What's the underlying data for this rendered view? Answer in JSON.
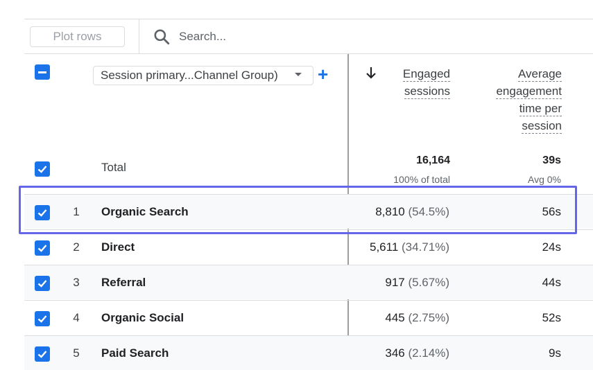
{
  "toolbar": {
    "plot_rows_label": "Plot rows",
    "search_placeholder": "Search..."
  },
  "icons": {
    "search": "search-icon",
    "sort": "arrow-down-icon",
    "add": "plus-icon",
    "check": "checkbox-checked-icon",
    "indeterminate": "checkbox-indeterminate-icon"
  },
  "colors": {
    "accent": "#1a73e8",
    "highlight": "#6366e8"
  },
  "header": {
    "dimension_select": "Session primary...Channel Group)",
    "add_symbol": "+",
    "metric1": [
      "Engaged",
      "sessions"
    ],
    "metric2": [
      "Average",
      "engagement",
      "time per",
      "session"
    ]
  },
  "total": {
    "label": "Total",
    "engaged": "16,164",
    "engaged_sub": "100% of total",
    "avg": "39s",
    "avg_sub": "Avg 0%"
  },
  "rows": [
    {
      "index": "1",
      "name": "Organic Search",
      "engaged": "8,810",
      "pct": "(54.5%)",
      "avg": "56s"
    },
    {
      "index": "2",
      "name": "Direct",
      "engaged": "5,611",
      "pct": "(34.71%)",
      "avg": "24s"
    },
    {
      "index": "3",
      "name": "Referral",
      "engaged": "917",
      "pct": "(5.67%)",
      "avg": "44s"
    },
    {
      "index": "4",
      "name": "Organic Social",
      "engaged": "445",
      "pct": "(2.75%)",
      "avg": "52s"
    },
    {
      "index": "5",
      "name": "Paid Search",
      "engaged": "346",
      "pct": "(2.14%)",
      "avg": "9s"
    }
  ]
}
